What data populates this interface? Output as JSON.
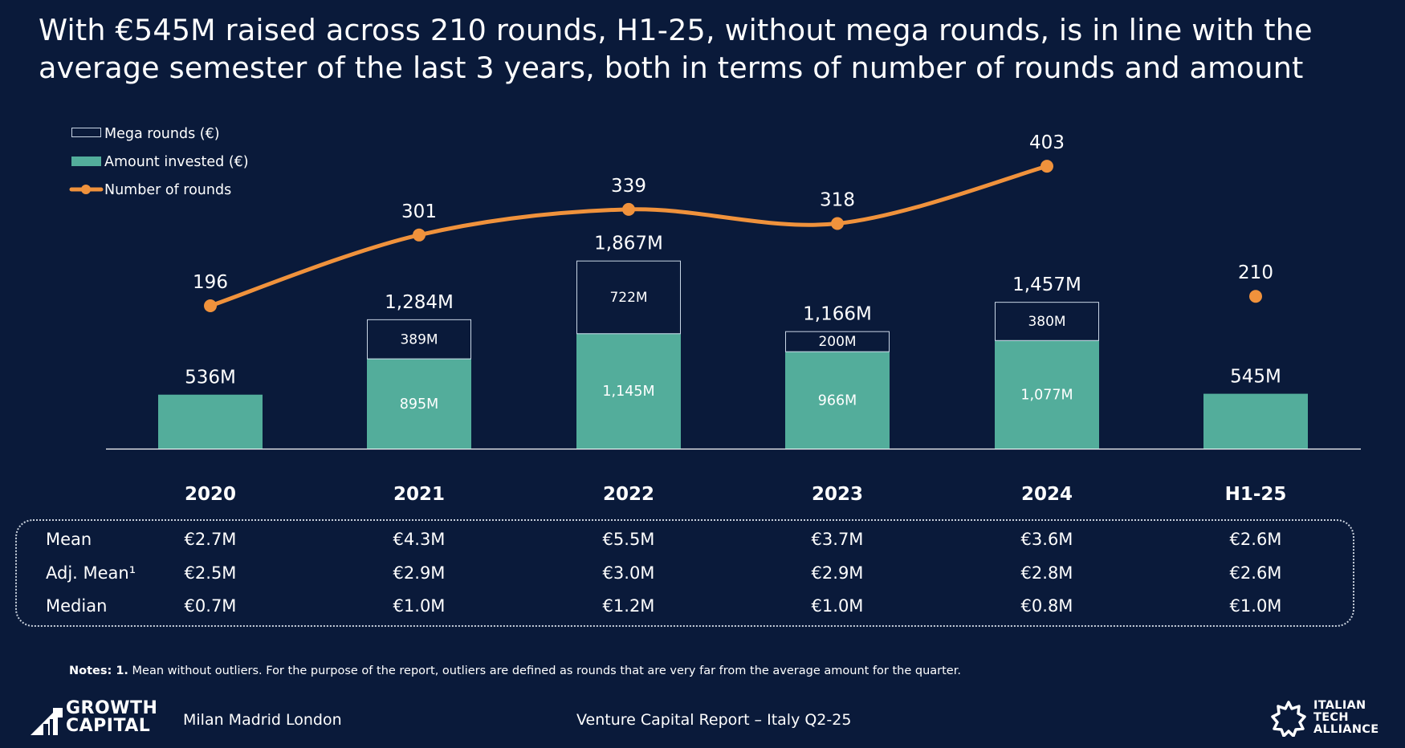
{
  "headline": {
    "line1": "With €545M raised across 210 rounds, H1-25, without mega rounds, is in line with the",
    "line2": "average semester of the last 3 years, both in terms of number of rounds and amount"
  },
  "colors": {
    "background": "#0a1a3a",
    "amount_bar": "#53ad9b",
    "line": "#f0923c",
    "mega_outline": "#c9d6e6",
    "text": "#ffffff"
  },
  "chart_data": {
    "type": "bar",
    "categories": [
      "2020",
      "2021",
      "2022",
      "2023",
      "2024",
      "H1-25"
    ],
    "series": [
      {
        "name": "Amount invested (€)",
        "values": [
          536,
          895,
          1145,
          966,
          1077,
          545
        ],
        "labels": [
          "",
          "895M",
          "1,145M",
          "966M",
          "1,077M",
          ""
        ]
      },
      {
        "name": "Mega rounds (€)",
        "values": [
          0,
          389,
          722,
          200,
          380,
          0
        ],
        "labels": [
          "",
          "389M",
          "722M",
          "200M",
          "380M",
          ""
        ]
      },
      {
        "name": "Number of rounds",
        "type": "line",
        "values": [
          196,
          301,
          339,
          318,
          403,
          210
        ],
        "labels": [
          "196",
          "301",
          "339",
          "318",
          "403",
          "210"
        ]
      }
    ],
    "totals": [
      536,
      1284,
      1867,
      1166,
      1457,
      545
    ],
    "total_labels": [
      "536M",
      "1,284M",
      "1,867M",
      "1,166M",
      "1,457M",
      "545M"
    ],
    "line_connected_through": "2024",
    "legend": [
      "Mega rounds (€)",
      "Amount invested (€)",
      "Number of rounds"
    ],
    "legend_position": "top-left",
    "grid": false,
    "ylim": [
      0,
      1867
    ]
  },
  "stats_table": {
    "rows": [
      {
        "label": "Mean",
        "values": [
          "€2.7M",
          "€4.3M",
          "€5.5M",
          "€3.7M",
          "€3.6M",
          "€2.6M"
        ]
      },
      {
        "label": "Adj. Mean¹",
        "values": [
          "€2.5M",
          "€2.9M",
          "€3.0M",
          "€2.9M",
          "€2.8M",
          "€2.6M"
        ]
      },
      {
        "label": "Median",
        "values": [
          "€0.7M",
          "€1.0M",
          "€1.2M",
          "€1.0M",
          "€0.8M",
          "€1.0M"
        ]
      }
    ]
  },
  "notes": {
    "prefix": "Notes: 1.",
    "text": " Mean without outliers. For the purpose of the report, outliers are defined as rounds that are very far from the average amount for the quarter."
  },
  "footer": {
    "logo_line1": "GROWTH",
    "logo_line2": "CAPITAL",
    "cities": "Milan Madrid London",
    "report": "Venture Capital Report – Italy Q2-25",
    "partner_line1": "ITALIAN",
    "partner_line2": "TECH",
    "partner_line3": "ALLIANCE"
  }
}
